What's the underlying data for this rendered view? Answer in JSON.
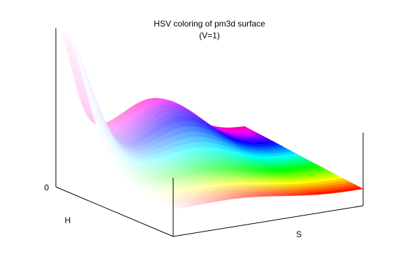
{
  "chart_data": {
    "type": "surface",
    "title": "HSV coloring of pm3d surface",
    "subtitle": "(V=1)",
    "xlabel": "H",
    "ylabel": "S",
    "z_tick_labels": [
      "0"
    ],
    "color_mode": "hsv",
    "hsv_value": 1,
    "grid": false,
    "legend": false,
    "border_color": "#000000"
  }
}
